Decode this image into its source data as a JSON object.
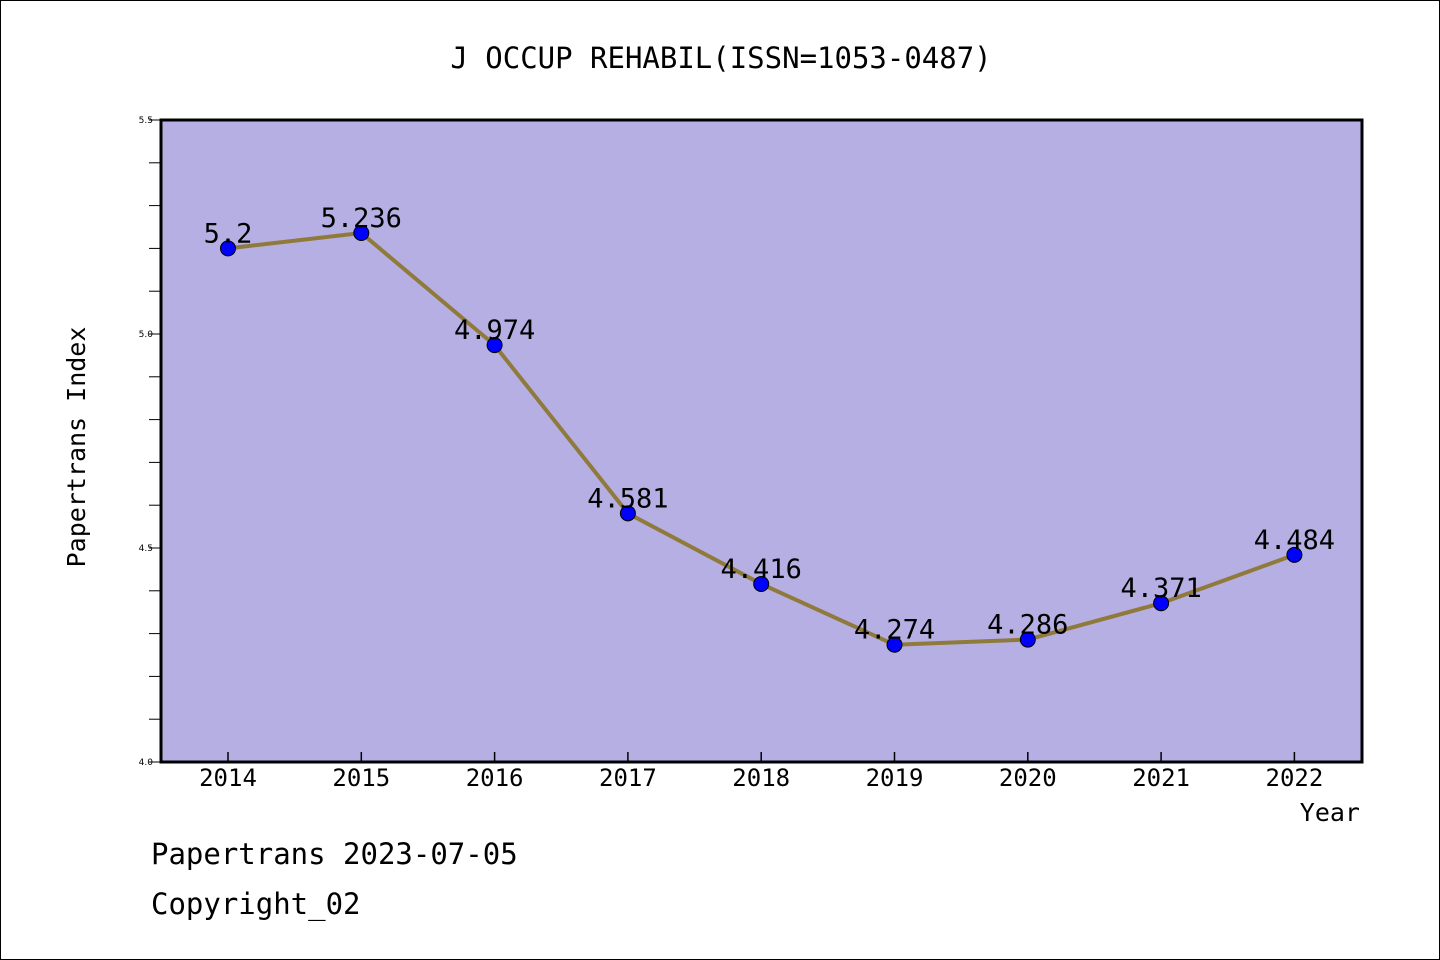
{
  "chart_data": {
    "type": "line",
    "title": "J OCCUP REHABIL(ISSN=1053-0487)",
    "xlabel": "Year",
    "ylabel": "Papertrans Index",
    "categories": [
      "2014",
      "2015",
      "2016",
      "2017",
      "2018",
      "2019",
      "2020",
      "2021",
      "2022"
    ],
    "series": [
      {
        "values": [
          5.2,
          5.236,
          4.974,
          4.581,
          4.416,
          4.274,
          4.286,
          4.371,
          4.484
        ],
        "data_labels": [
          "5.2",
          "5.236",
          "4.974",
          "4.581",
          "4.416",
          "4.274",
          "4.286",
          "4.371",
          "4.484"
        ]
      }
    ],
    "ylim": [
      4.0,
      5.5
    ],
    "yticks": [
      "4.0",
      "4.5",
      "5.0",
      "5.5"
    ],
    "grid": false,
    "colors": {
      "plot_background": "#b5afe3",
      "line": "#8f7a3c",
      "marker": "#0000ff"
    }
  },
  "footer": {
    "line1": "Papertrans 2023-07-05",
    "line2": "Copyright_02"
  }
}
